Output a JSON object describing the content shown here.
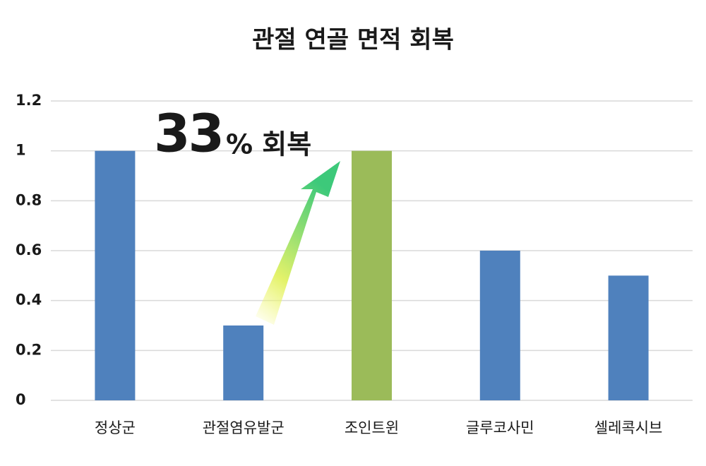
{
  "chart_data": {
    "type": "bar",
    "title": "관절 연골 면적 회복",
    "categories": [
      "정상군",
      "관절염유발군",
      "조인트윈",
      "글루코사민",
      "셀레콕시브"
    ],
    "values": [
      1,
      0.3,
      1,
      0.6,
      0.5
    ],
    "colors": [
      "#4f81bd",
      "#4f81bd",
      "#9bbb59",
      "#4f81bd",
      "#4f81bd"
    ],
    "ylim": [
      0,
      1.2
    ],
    "yticks": [
      0,
      0.2,
      0.4,
      0.6,
      0.8,
      1,
      1.2
    ],
    "grid": true,
    "annotation_number": 33,
    "annotation_text": "% 회복"
  }
}
